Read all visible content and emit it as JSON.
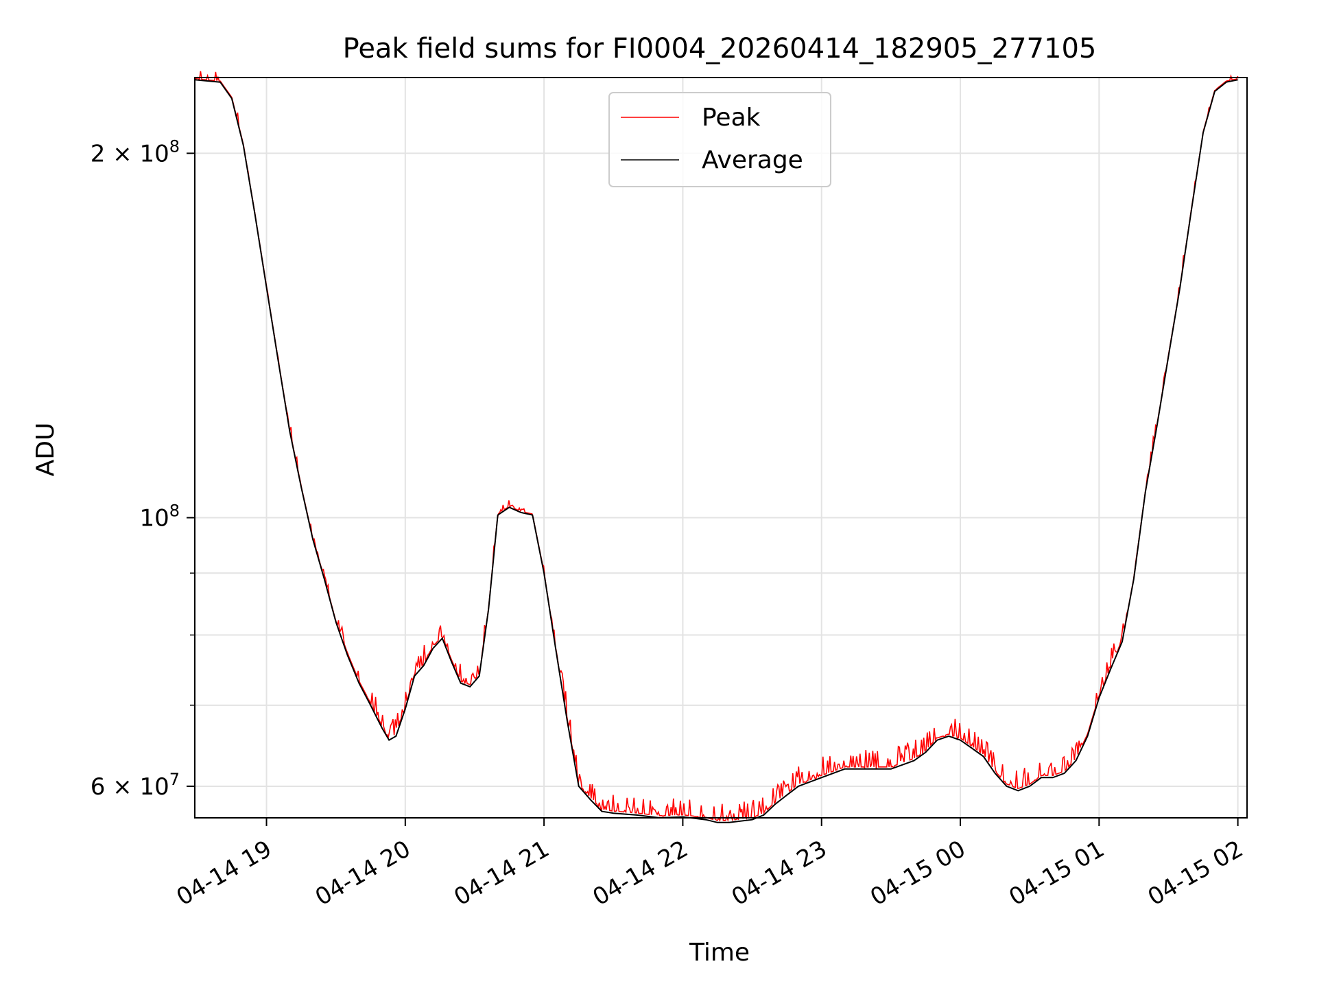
{
  "chart_data": {
    "type": "line",
    "title": "Peak field sums for FI0004_20260414_182905_277105",
    "xlabel": "Time",
    "ylabel": "ADU",
    "x_unit": "datetime",
    "x_range": [
      "2026-04-14 18:29",
      "2026-04-15 02:00"
    ],
    "y_scale": "log",
    "ylim": [
      56500000,
      231000000
    ],
    "grid": true,
    "legend_position": "top-center",
    "x_ticks": [
      {
        "value": "2026-04-14 19:00",
        "label": "04-14 19"
      },
      {
        "value": "2026-04-14 20:00",
        "label": "04-14 20"
      },
      {
        "value": "2026-04-14 21:00",
        "label": "04-14 21"
      },
      {
        "value": "2026-04-14 22:00",
        "label": "04-14 22"
      },
      {
        "value": "2026-04-14 23:00",
        "label": "04-14 23"
      },
      {
        "value": "2026-04-15 00:00",
        "label": "04-15 00"
      },
      {
        "value": "2026-04-15 01:00",
        "label": "04-15 01"
      },
      {
        "value": "2026-04-15 02:00",
        "label": "04-15 02"
      }
    ],
    "y_ticks": [
      {
        "value": 60000000,
        "mantissa": "6",
        "exponent": "7"
      },
      {
        "value": 100000000,
        "mantissa": "",
        "exponent": "8"
      },
      {
        "value": 200000000,
        "mantissa": "2",
        "exponent": "8"
      }
    ],
    "y_minor_ticks": [
      70000000,
      80000000,
      90000000
    ],
    "series": [
      {
        "name": "Peak",
        "color": "#ff0000",
        "style": "spiky"
      },
      {
        "name": "Average",
        "color": "#000000",
        "x": [
          "2026-04-14 18:29",
          "2026-04-14 18:40",
          "2026-04-14 18:45",
          "2026-04-14 18:50",
          "2026-04-14 18:55",
          "2026-04-14 19:00",
          "2026-04-14 19:05",
          "2026-04-14 19:10",
          "2026-04-14 19:15",
          "2026-04-14 19:20",
          "2026-04-14 19:25",
          "2026-04-14 19:30",
          "2026-04-14 19:35",
          "2026-04-14 19:40",
          "2026-04-14 19:45",
          "2026-04-14 19:50",
          "2026-04-14 19:53",
          "2026-04-14 19:56",
          "2026-04-14 20:00",
          "2026-04-14 20:04",
          "2026-04-14 20:08",
          "2026-04-14 20:12",
          "2026-04-14 20:16",
          "2026-04-14 20:20",
          "2026-04-14 20:24",
          "2026-04-14 20:28",
          "2026-04-14 20:32",
          "2026-04-14 20:36",
          "2026-04-14 20:40",
          "2026-04-14 20:45",
          "2026-04-14 20:50",
          "2026-04-14 20:55",
          "2026-04-14 21:00",
          "2026-04-14 21:05",
          "2026-04-14 21:10",
          "2026-04-14 21:15",
          "2026-04-14 21:20",
          "2026-04-14 21:25",
          "2026-04-14 21:30",
          "2026-04-14 21:40",
          "2026-04-14 21:50",
          "2026-04-14 22:00",
          "2026-04-14 22:10",
          "2026-04-14 22:15",
          "2026-04-14 22:20",
          "2026-04-14 22:30",
          "2026-04-14 22:35",
          "2026-04-14 22:40",
          "2026-04-14 22:45",
          "2026-04-14 22:50",
          "2026-04-14 23:00",
          "2026-04-14 23:10",
          "2026-04-14 23:20",
          "2026-04-14 23:30",
          "2026-04-14 23:40",
          "2026-04-14 23:45",
          "2026-04-14 23:50",
          "2026-04-14 23:55",
          "2026-04-15 00:00",
          "2026-04-15 00:05",
          "2026-04-15 00:10",
          "2026-04-15 00:15",
          "2026-04-15 00:20",
          "2026-04-15 00:25",
          "2026-04-15 00:30",
          "2026-04-15 00:35",
          "2026-04-15 00:40",
          "2026-04-15 00:45",
          "2026-04-15 00:50",
          "2026-04-15 00:55",
          "2026-04-15 01:00",
          "2026-04-15 01:05",
          "2026-04-15 01:10",
          "2026-04-15 01:15",
          "2026-04-15 01:20",
          "2026-04-15 01:25",
          "2026-04-15 01:30",
          "2026-04-15 01:35",
          "2026-04-15 01:40",
          "2026-04-15 01:45",
          "2026-04-15 01:50",
          "2026-04-15 01:55",
          "2026-04-15 02:00"
        ],
        "values": [
          230000000,
          229000000,
          222000000,
          203000000,
          178000000,
          155000000,
          135000000,
          118000000,
          106000000,
          96000000,
          89000000,
          82000000,
          77000000,
          73000000,
          70000000,
          67000000,
          65500000,
          66000000,
          69500000,
          74000000,
          75500000,
          78000000,
          79500000,
          76000000,
          73000000,
          72500000,
          74000000,
          84000000,
          100500000,
          102000000,
          101000000,
          100500000,
          90000000,
          78000000,
          68000000,
          60000000,
          58500000,
          57200000,
          57000000,
          56800000,
          56500000,
          56600000,
          56300000,
          56000000,
          56000000,
          56300000,
          56800000,
          58000000,
          59000000,
          60000000,
          61000000,
          62000000,
          62000000,
          62000000,
          63000000,
          64000000,
          65500000,
          66000000,
          65500000,
          64500000,
          63500000,
          61500000,
          60000000,
          59500000,
          60000000,
          61000000,
          61000000,
          61500000,
          63000000,
          66000000,
          71000000,
          75000000,
          79000000,
          89000000,
          105000000,
          119000000,
          136000000,
          155000000,
          180000000,
          208000000,
          225000000,
          229000000,
          230000000
        ]
      }
    ]
  }
}
